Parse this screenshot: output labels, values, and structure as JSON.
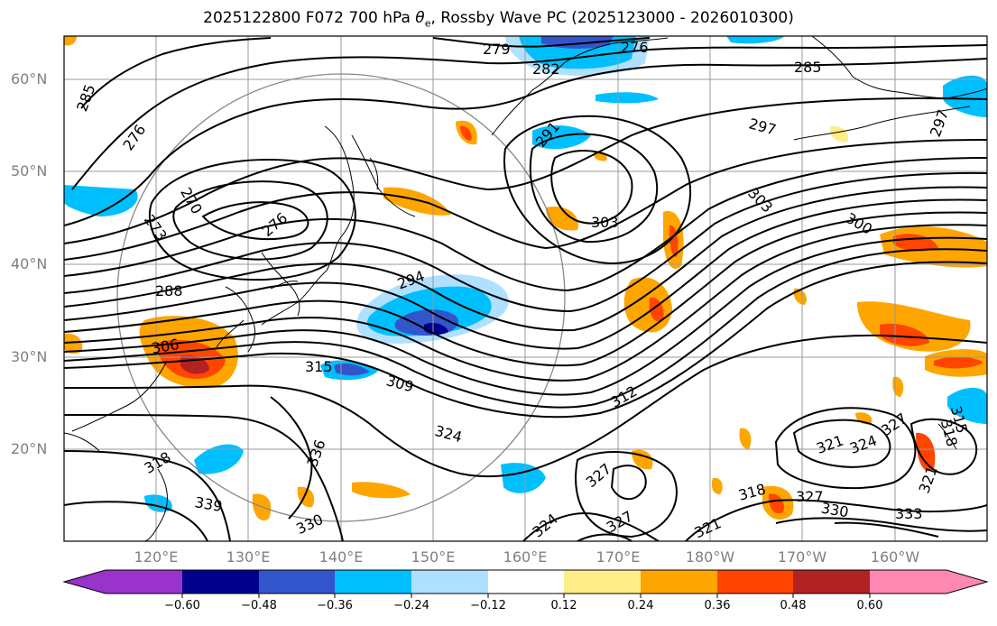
{
  "title": {
    "prefix": "2025122800 F072 700 hPa ",
    "theta": "θ",
    "sub": "e",
    "suffix": ", Rossby Wave PC (2025123000 - 2026010300)"
  },
  "latitude_labels": [
    "60°N",
    "50°N",
    "40°N",
    "30°N",
    "20°N"
  ],
  "longitude_labels": [
    "120°E",
    "130°E",
    "140°E",
    "150°E",
    "160°E",
    "170°E",
    "180°W",
    "170°W",
    "160°W"
  ],
  "contour_labels": [
    "279",
    "282",
    "276",
    "285",
    "285",
    "276",
    "297",
    "291",
    "297",
    "270",
    "273",
    "276",
    "303",
    "303",
    "300",
    "294",
    "288",
    "306",
    "315",
    "309",
    "312",
    "324",
    "336",
    "318",
    "321",
    "324",
    "327",
    "315",
    "318",
    "321",
    "327",
    "324",
    "327",
    "330",
    "333",
    "318",
    "330",
    "327",
    "339",
    "321"
  ],
  "colorbar": {
    "tick_labels": [
      "−0.60",
      "−0.48",
      "−0.36",
      "−0.24",
      "−0.12",
      "0.12",
      "0.24",
      "0.36",
      "0.48",
      "0.60"
    ],
    "colors": {
      "under": "#9933cc",
      "n060_n048": "#00008b",
      "n048_n036": "#3355cc",
      "n036_n024": "#00bfff",
      "n024_n012": "#b0e0ff",
      "n012_p012": "#ffffff",
      "p012_p024": "#ffee88",
      "p024_p036": "#ffa500",
      "p036_p048": "#ff4500",
      "p048_p060": "#b22222",
      "over": "#ff88b0"
    }
  }
}
